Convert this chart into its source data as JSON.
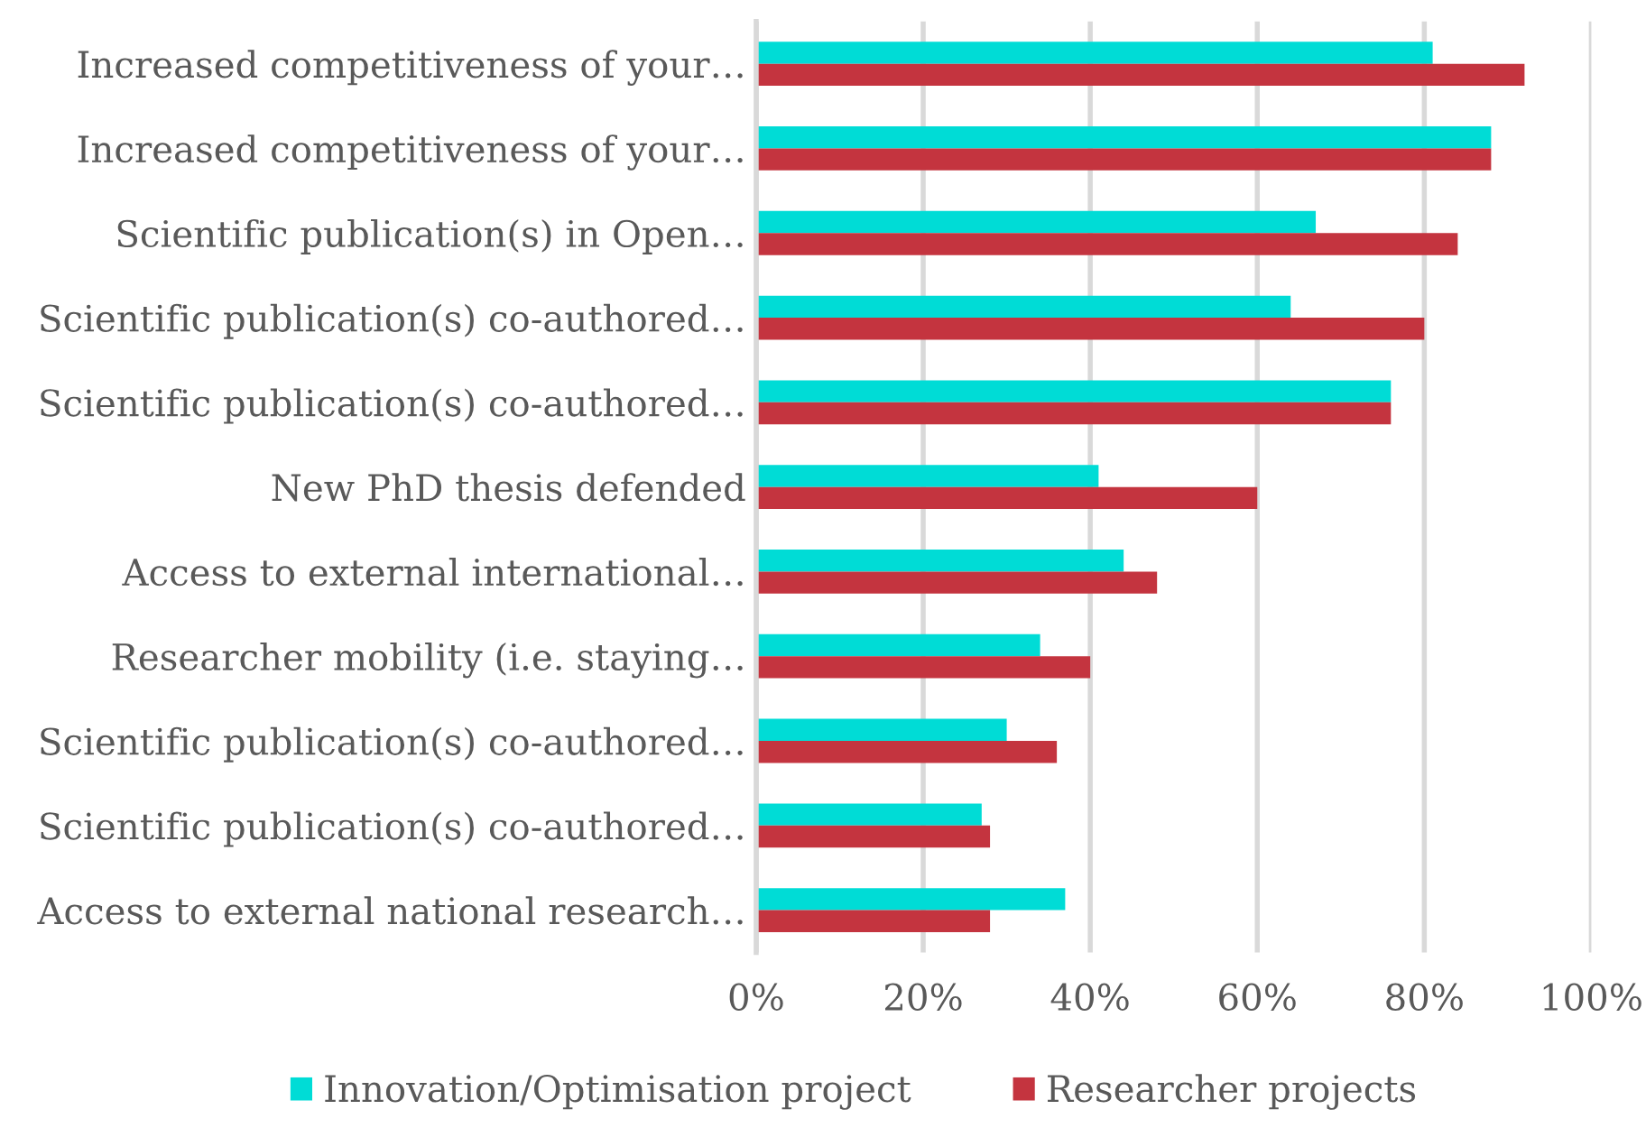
{
  "chart_data": {
    "type": "bar",
    "orientation": "horizontal",
    "categories": [
      "Increased competitiveness of your…",
      "Increased competitiveness of your…",
      "Scientific publication(s) in Open…",
      "Scientific publication(s) co-authored…",
      "Scientific publication(s) co-authored…",
      "New PhD thesis defended",
      "Access to external international…",
      "Researcher mobility (i.e. staying…",
      "Scientific publication(s) co-authored…",
      "Scientific publication(s) co-authored…",
      "Access to external national research…"
    ],
    "series": [
      {
        "name": "Innovation/Optimisation project",
        "color": "#00dcd6",
        "values": [
          81,
          88,
          67,
          64,
          76,
          41,
          44,
          34,
          30,
          27,
          37
        ]
      },
      {
        "name": "Researcher projects",
        "color": "#c4343f",
        "values": [
          92,
          88,
          84,
          80,
          76,
          60,
          48,
          40,
          36,
          28,
          28
        ]
      }
    ],
    "xlim": [
      0,
      100
    ],
    "xticks": [
      {
        "value": 0,
        "label": "0%"
      },
      {
        "value": 20,
        "label": "20%"
      },
      {
        "value": 40,
        "label": "40%"
      },
      {
        "value": 60,
        "label": "60%"
      },
      {
        "value": 80,
        "label": "80%"
      },
      {
        "value": 100,
        "label": "100%"
      }
    ],
    "grid": "x",
    "legend": "bottom"
  }
}
